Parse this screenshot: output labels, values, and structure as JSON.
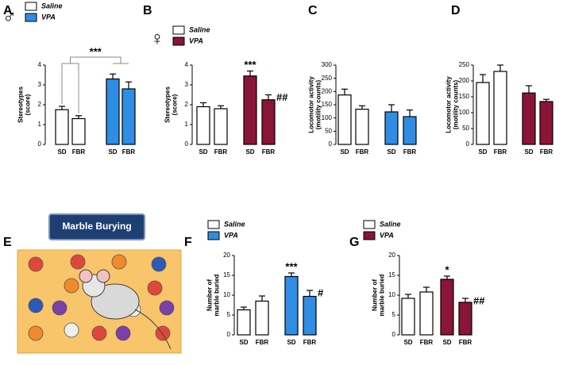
{
  "chart_data": [
    {
      "type": "bar",
      "panel": "A",
      "sex_symbol": "♂",
      "ylabel": [
        "Stereotypes",
        "(score)"
      ],
      "categories": [
        "SD",
        "FBR",
        "SD",
        "FBR"
      ],
      "values": [
        1.75,
        1.3,
        3.3,
        2.8
      ],
      "errors": [
        0.17,
        0.15,
        0.25,
        0.35
      ],
      "colors": [
        "#ffffff",
        "#ffffff",
        "#2f8de4",
        "#2f8de4"
      ],
      "legend": [
        {
          "name": "Saline",
          "color": "#ffffff"
        },
        {
          "name": "VPA",
          "color": "#2f8de4"
        }
      ],
      "group_annotation": "***",
      "annotations": [
        null,
        null,
        null,
        null
      ],
      "ylim": [
        0,
        4
      ],
      "yticks": [
        0,
        1,
        2,
        3,
        4
      ]
    },
    {
      "type": "bar",
      "panel": "B",
      "sex_symbol": "♀",
      "ylabel": [
        "Stereotypes",
        "(score)"
      ],
      "categories": [
        "SD",
        "FBR",
        "SD",
        "FBR"
      ],
      "values": [
        1.9,
        1.8,
        3.45,
        2.25
      ],
      "errors": [
        0.2,
        0.15,
        0.25,
        0.25
      ],
      "colors": [
        "#ffffff",
        "#ffffff",
        "#8a1538",
        "#8a1538"
      ],
      "legend": [
        {
          "name": "Saline",
          "color": "#ffffff"
        },
        {
          "name": "VPA",
          "color": "#8a1538"
        }
      ],
      "annotations": [
        null,
        null,
        "***",
        "##"
      ],
      "ylim": [
        0,
        4
      ],
      "yticks": [
        0,
        1,
        2,
        3,
        4
      ]
    },
    {
      "type": "bar",
      "panel": "C",
      "ylabel": [
        "Locomotor activity",
        "(motility counts)"
      ],
      "categories": [
        "SD",
        "FBR",
        "SD",
        "FBR"
      ],
      "values": [
        187,
        133,
        123,
        105
      ],
      "errors": [
        22,
        13,
        27,
        25
      ],
      "colors": [
        "#ffffff",
        "#ffffff",
        "#2f8de4",
        "#2f8de4"
      ],
      "ylim": [
        0,
        300
      ],
      "yticks": [
        0,
        50,
        100,
        150,
        200,
        250,
        300
      ]
    },
    {
      "type": "bar",
      "panel": "D",
      "ylabel": [
        "Locomotor activity",
        "(motility counts)"
      ],
      "categories": [
        "SD",
        "FBR",
        "SD",
        "FBR"
      ],
      "values": [
        195,
        230,
        162,
        135
      ],
      "errors": [
        25,
        20,
        23,
        7
      ],
      "colors": [
        "#ffffff",
        "#ffffff",
        "#8a1538",
        "#8a1538"
      ],
      "ylim": [
        0,
        250
      ],
      "yticks": [
        0,
        50,
        100,
        150,
        200,
        250
      ]
    },
    {
      "type": "bar",
      "panel": "F",
      "ylabel": [
        "Number of",
        "marble buried"
      ],
      "categories": [
        "SD",
        "FBR",
        "SD",
        "FBR"
      ],
      "values": [
        6.3,
        8.5,
        14.7,
        9.7
      ],
      "errors": [
        0.7,
        1.3,
        0.9,
        1.5
      ],
      "colors": [
        "#ffffff",
        "#ffffff",
        "#2f8de4",
        "#2f8de4"
      ],
      "legend": [
        {
          "name": "Saline",
          "color": "#ffffff"
        },
        {
          "name": "VPA",
          "color": "#2f8de4"
        }
      ],
      "annotations": [
        null,
        null,
        "***",
        "#"
      ],
      "ylim": [
        0,
        20
      ],
      "yticks": [
        0,
        5,
        10,
        15,
        20
      ]
    },
    {
      "type": "bar",
      "panel": "G",
      "ylabel": [
        "Number of",
        "marble buried"
      ],
      "categories": [
        "SD",
        "FBR",
        "SD",
        "FBR"
      ],
      "values": [
        9.2,
        10.8,
        14.0,
        8.2
      ],
      "errors": [
        1.0,
        1.2,
        0.8,
        1.0
      ],
      "colors": [
        "#ffffff",
        "#ffffff",
        "#8a1538",
        "#8a1538"
      ],
      "legend": [
        {
          "name": "Saline",
          "color": "#ffffff"
        },
        {
          "name": "VPA",
          "color": "#8a1538"
        }
      ],
      "annotations": [
        null,
        null,
        "*",
        "##"
      ],
      "ylim": [
        0,
        20
      ],
      "yticks": [
        0,
        5,
        10,
        15,
        20
      ]
    }
  ],
  "panel_e": {
    "panel": "E",
    "title": "Marble Burying"
  }
}
